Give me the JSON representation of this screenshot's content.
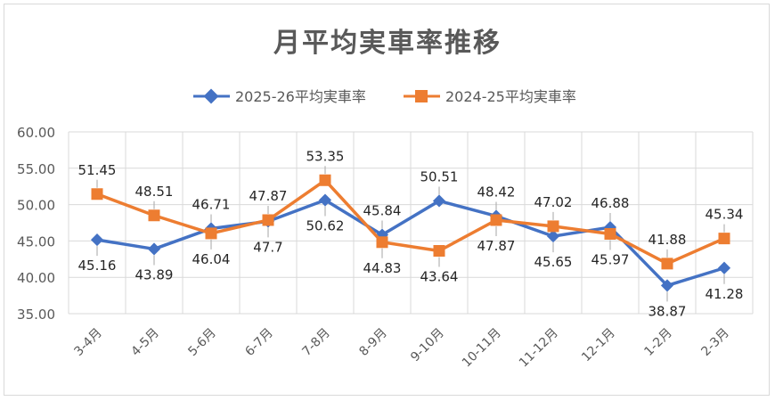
{
  "chart_data": {
    "type": "line",
    "title": "月平均実車率推移",
    "categories": [
      "3-4月",
      "4-5月",
      "5-6月",
      "6-7月",
      "7-8月",
      "8-9月",
      "9-10月",
      "10-11月",
      "11-12月",
      "12-1月",
      "1-2月",
      "2-3月"
    ],
    "ylim": [
      35,
      60
    ],
    "yticks": [
      "60.00",
      "55.00",
      "50.00",
      "45.00",
      "40.00",
      "35.00"
    ],
    "grid": true,
    "legend_position": "top",
    "series": [
      {
        "name": "2025-26平均実車率",
        "color": "#4472C4",
        "marker": "diamond",
        "values": [
          45.16,
          43.89,
          46.71,
          47.7,
          50.62,
          45.84,
          50.51,
          48.42,
          45.65,
          46.88,
          38.87,
          41.28
        ],
        "labels": [
          "45.16",
          "43.89",
          "46.71",
          "47.7",
          "50.62",
          "45.84",
          "50.51",
          "48.42",
          "45.65",
          "46.88",
          "38.87",
          "41.28"
        ]
      },
      {
        "name": "2024-25平均実車率",
        "color": "#ED7D31",
        "marker": "square",
        "values": [
          51.45,
          48.51,
          46.04,
          47.87,
          53.35,
          44.83,
          43.64,
          47.87,
          47.02,
          45.97,
          41.88,
          45.34
        ],
        "labels": [
          "51.45",
          "48.51",
          "46.04",
          "47.87",
          "53.35",
          "44.83",
          "43.64",
          "47.87",
          "47.02",
          "45.97",
          "41.88",
          "45.34"
        ]
      }
    ]
  }
}
